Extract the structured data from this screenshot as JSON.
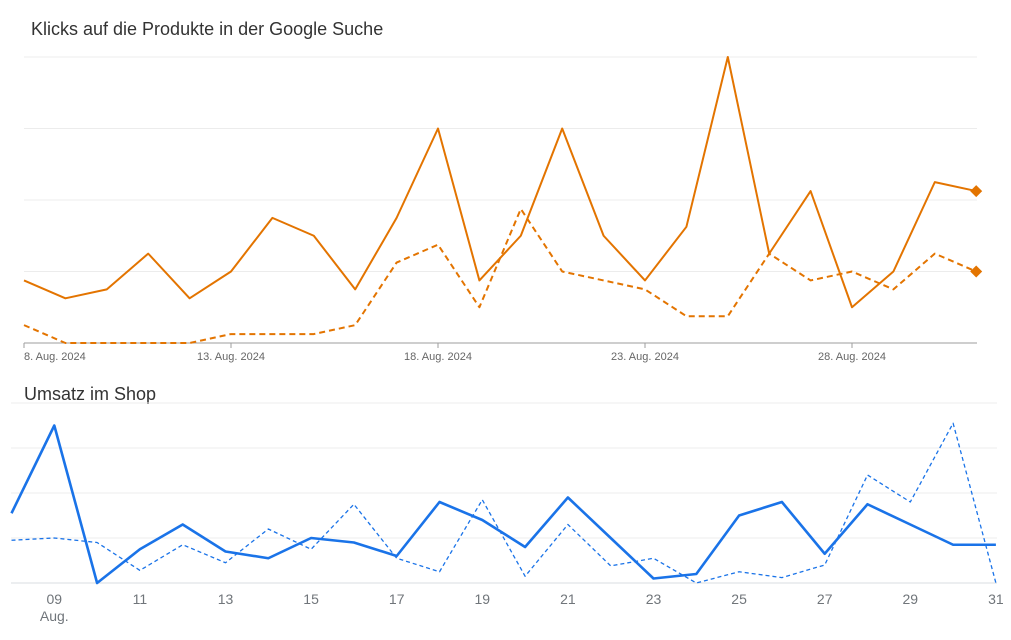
{
  "chart_data": [
    {
      "type": "line",
      "title": "Klicks auf die Produkte in der Google Suche",
      "x": [
        "2024-08-08",
        "2024-08-09",
        "2024-08-10",
        "2024-08-11",
        "2024-08-12",
        "2024-08-13",
        "2024-08-14",
        "2024-08-15",
        "2024-08-16",
        "2024-08-17",
        "2024-08-18",
        "2024-08-19",
        "2024-08-20",
        "2024-08-21",
        "2024-08-22",
        "2024-08-23",
        "2024-08-24",
        "2024-08-25",
        "2024-08-26",
        "2024-08-27",
        "2024-08-28",
        "2024-08-29",
        "2024-08-30",
        "2024-08-31"
      ],
      "x_tick_labels": [
        {
          "label": "8. Aug. 2024",
          "x": "2024-08-08"
        },
        {
          "label": "13. Aug. 2024",
          "x": "2024-08-13"
        },
        {
          "label": "18. Aug. 2024",
          "x": "2024-08-18"
        },
        {
          "label": "23. Aug. 2024",
          "x": "2024-08-23"
        },
        {
          "label": "28. Aug. 2024",
          "x": "2024-08-28"
        }
      ],
      "ylim": [
        0,
        16
      ],
      "grid": true,
      "series": [
        {
          "style": "solid",
          "color": "#e37400",
          "end_marker": "diamond",
          "values": [
            3.5,
            2.5,
            3.0,
            5.0,
            2.5,
            4.0,
            7.0,
            6.0,
            3.0,
            7.0,
            12.0,
            3.5,
            6.0,
            12.0,
            6.0,
            3.5,
            6.5,
            16.0,
            5.0,
            8.5,
            2.0,
            4.0,
            9.0,
            8.5
          ]
        },
        {
          "style": "dashed",
          "color": "#e37400",
          "end_marker": "diamond",
          "values": [
            1.0,
            0.0,
            0.0,
            0.0,
            0.0,
            0.5,
            0.5,
            0.5,
            1.0,
            4.5,
            5.5,
            2.0,
            7.5,
            4.0,
            3.5,
            3.0,
            1.5,
            1.5,
            5.0,
            3.5,
            4.0,
            3.0,
            5.0,
            4.0
          ]
        }
      ]
    },
    {
      "type": "line",
      "title": "Umsatz im Shop",
      "x": [
        "2024-08-08",
        "2024-08-09",
        "2024-08-10",
        "2024-08-11",
        "2024-08-12",
        "2024-08-13",
        "2024-08-14",
        "2024-08-15",
        "2024-08-16",
        "2024-08-17",
        "2024-08-18",
        "2024-08-19",
        "2024-08-20",
        "2024-08-21",
        "2024-08-22",
        "2024-08-23",
        "2024-08-24",
        "2024-08-25",
        "2024-08-26",
        "2024-08-27",
        "2024-08-28",
        "2024-08-29",
        "2024-08-30",
        "2024-08-31"
      ],
      "x_tick_labels": [
        {
          "label": "09",
          "sublabel": "Aug.",
          "x": "2024-08-09"
        },
        {
          "label": "11",
          "x": "2024-08-11"
        },
        {
          "label": "13",
          "x": "2024-08-13"
        },
        {
          "label": "15",
          "x": "2024-08-15"
        },
        {
          "label": "17",
          "x": "2024-08-17"
        },
        {
          "label": "19",
          "x": "2024-08-19"
        },
        {
          "label": "21",
          "x": "2024-08-21"
        },
        {
          "label": "23",
          "x": "2024-08-23"
        },
        {
          "label": "25",
          "x": "2024-08-25"
        },
        {
          "label": "27",
          "x": "2024-08-27"
        },
        {
          "label": "29",
          "x": "2024-08-29"
        },
        {
          "label": "31",
          "x": "2024-08-31"
        }
      ],
      "ylim": [
        0,
        4
      ],
      "grid": true,
      "series": [
        {
          "style": "solid",
          "color": "#1a73e8",
          "values": [
            1.55,
            3.5,
            0.0,
            0.75,
            1.3,
            0.7,
            0.55,
            1.0,
            0.9,
            0.6,
            1.8,
            1.4,
            0.8,
            1.9,
            1.0,
            0.1,
            0.2,
            1.5,
            1.8,
            0.65,
            1.75,
            1.3,
            0.85,
            0.85
          ]
        },
        {
          "style": "dotted",
          "color": "#1a73e8",
          "values": [
            0.95,
            1.0,
            0.9,
            0.28,
            0.85,
            0.45,
            1.2,
            0.75,
            1.75,
            0.55,
            0.25,
            1.85,
            0.15,
            1.3,
            0.38,
            0.55,
            0.0,
            0.25,
            0.12,
            0.4,
            2.4,
            1.8,
            3.55,
            0.0
          ]
        }
      ]
    }
  ]
}
